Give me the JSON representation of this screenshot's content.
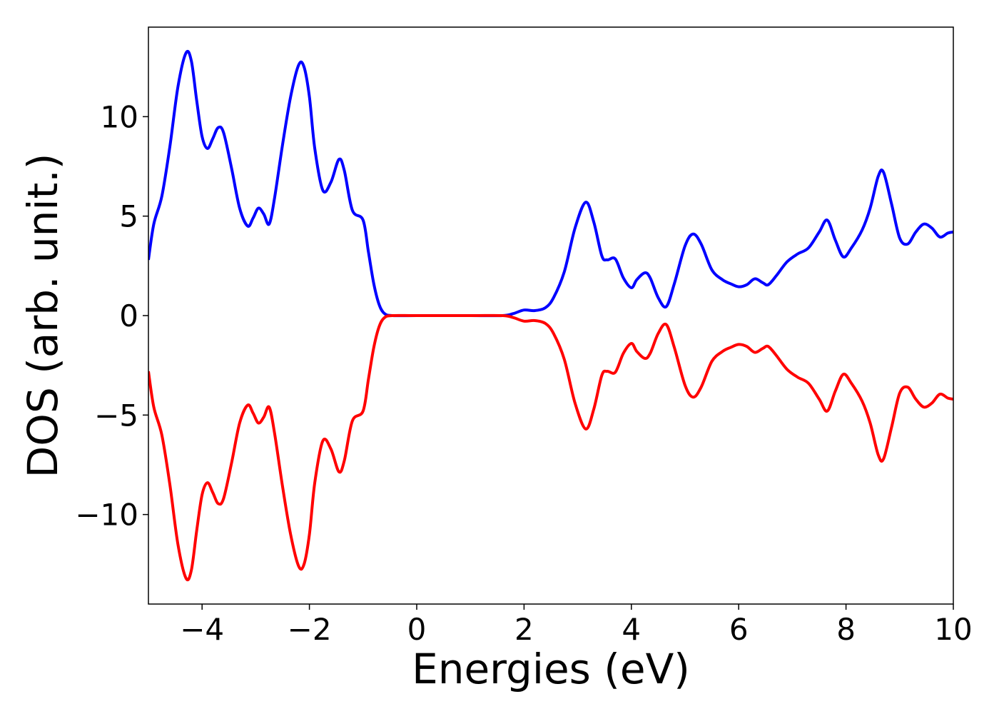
{
  "chart_data": {
    "type": "line",
    "title": "",
    "xlabel": "Energies (eV)",
    "ylabel": "DOS (arb. unit.)",
    "xlim": [
      -5,
      10
    ],
    "ylim": [
      -14.5,
      14.5
    ],
    "grid": false,
    "x_ticks": [
      {
        "value": -4,
        "label": "−4"
      },
      {
        "value": -2,
        "label": "−2"
      },
      {
        "value": 0,
        "label": "0"
      },
      {
        "value": 2,
        "label": "2"
      },
      {
        "value": 4,
        "label": "4"
      },
      {
        "value": 6,
        "label": "6"
      },
      {
        "value": 8,
        "label": "8"
      },
      {
        "value": 10,
        "label": "10"
      }
    ],
    "y_ticks": [
      {
        "value": 10,
        "label": "10"
      },
      {
        "value": 5,
        "label": "5"
      },
      {
        "value": 0,
        "label": "0"
      },
      {
        "value": -5,
        "label": "−5"
      },
      {
        "value": -10,
        "label": "−10"
      }
    ],
    "series": [
      {
        "color": "#0000ff",
        "points": [
          [
            -5.0,
            2.8
          ],
          [
            -4.9,
            4.6
          ],
          [
            -4.75,
            6.0
          ],
          [
            -4.6,
            8.5
          ],
          [
            -4.45,
            11.5
          ],
          [
            -4.3,
            13.2
          ],
          [
            -4.2,
            12.8
          ],
          [
            -4.1,
            10.8
          ],
          [
            -4.0,
            9.0
          ],
          [
            -3.9,
            8.4
          ],
          [
            -3.8,
            8.9
          ],
          [
            -3.7,
            9.45
          ],
          [
            -3.6,
            9.2
          ],
          [
            -3.45,
            7.4
          ],
          [
            -3.3,
            5.4
          ],
          [
            -3.15,
            4.5
          ],
          [
            -3.05,
            4.9
          ],
          [
            -2.95,
            5.4
          ],
          [
            -2.85,
            5.1
          ],
          [
            -2.75,
            4.6
          ],
          [
            -2.65,
            5.9
          ],
          [
            -2.5,
            8.6
          ],
          [
            -2.35,
            11.0
          ],
          [
            -2.2,
            12.6
          ],
          [
            -2.1,
            12.5
          ],
          [
            -2.0,
            11.0
          ],
          [
            -1.9,
            8.4
          ],
          [
            -1.75,
            6.3
          ],
          [
            -1.6,
            6.7
          ],
          [
            -1.45,
            7.85
          ],
          [
            -1.35,
            7.3
          ],
          [
            -1.2,
            5.3
          ],
          [
            -1.0,
            4.8
          ],
          [
            -0.9,
            3.2
          ],
          [
            -0.8,
            1.6
          ],
          [
            -0.7,
            0.55
          ],
          [
            -0.6,
            0.1
          ],
          [
            -0.45,
            0.0
          ],
          [
            0.0,
            0.0
          ],
          [
            1.0,
            0.0
          ],
          [
            1.6,
            0.0
          ],
          [
            1.8,
            0.1
          ],
          [
            2.0,
            0.28
          ],
          [
            2.2,
            0.25
          ],
          [
            2.4,
            0.4
          ],
          [
            2.55,
            0.9
          ],
          [
            2.75,
            2.2
          ],
          [
            2.95,
            4.4
          ],
          [
            3.15,
            5.7
          ],
          [
            3.3,
            4.7
          ],
          [
            3.45,
            3.0
          ],
          [
            3.55,
            2.8
          ],
          [
            3.7,
            2.85
          ],
          [
            3.85,
            1.9
          ],
          [
            4.0,
            1.4
          ],
          [
            4.1,
            1.8
          ],
          [
            4.25,
            2.15
          ],
          [
            4.35,
            1.9
          ],
          [
            4.5,
            0.9
          ],
          [
            4.65,
            0.45
          ],
          [
            4.8,
            1.6
          ],
          [
            5.0,
            3.5
          ],
          [
            5.15,
            4.1
          ],
          [
            5.3,
            3.6
          ],
          [
            5.5,
            2.3
          ],
          [
            5.7,
            1.8
          ],
          [
            5.85,
            1.6
          ],
          [
            6.0,
            1.45
          ],
          [
            6.15,
            1.55
          ],
          [
            6.3,
            1.85
          ],
          [
            6.45,
            1.65
          ],
          [
            6.55,
            1.55
          ],
          [
            6.7,
            2.0
          ],
          [
            6.9,
            2.7
          ],
          [
            7.1,
            3.1
          ],
          [
            7.3,
            3.4
          ],
          [
            7.5,
            4.2
          ],
          [
            7.65,
            4.8
          ],
          [
            7.8,
            3.8
          ],
          [
            7.95,
            2.95
          ],
          [
            8.1,
            3.4
          ],
          [
            8.3,
            4.3
          ],
          [
            8.45,
            5.4
          ],
          [
            8.6,
            7.0
          ],
          [
            8.7,
            7.2
          ],
          [
            8.85,
            5.6
          ],
          [
            9.0,
            3.9
          ],
          [
            9.15,
            3.6
          ],
          [
            9.3,
            4.2
          ],
          [
            9.45,
            4.6
          ],
          [
            9.6,
            4.4
          ],
          [
            9.75,
            3.95
          ],
          [
            9.9,
            4.15
          ],
          [
            10.0,
            4.2
          ]
        ]
      },
      {
        "color": "#ff0000",
        "points": [
          [
            -5.0,
            -2.8
          ],
          [
            -4.9,
            -4.6
          ],
          [
            -4.75,
            -6.0
          ],
          [
            -4.6,
            -8.5
          ],
          [
            -4.45,
            -11.5
          ],
          [
            -4.3,
            -13.2
          ],
          [
            -4.2,
            -12.8
          ],
          [
            -4.1,
            -10.8
          ],
          [
            -4.0,
            -9.0
          ],
          [
            -3.9,
            -8.4
          ],
          [
            -3.8,
            -8.9
          ],
          [
            -3.7,
            -9.45
          ],
          [
            -3.6,
            -9.2
          ],
          [
            -3.45,
            -7.4
          ],
          [
            -3.3,
            -5.4
          ],
          [
            -3.15,
            -4.5
          ],
          [
            -3.05,
            -4.9
          ],
          [
            -2.95,
            -5.4
          ],
          [
            -2.85,
            -5.1
          ],
          [
            -2.75,
            -4.6
          ],
          [
            -2.65,
            -5.9
          ],
          [
            -2.5,
            -8.6
          ],
          [
            -2.35,
            -11.0
          ],
          [
            -2.2,
            -12.6
          ],
          [
            -2.1,
            -12.5
          ],
          [
            -2.0,
            -11.0
          ],
          [
            -1.9,
            -8.4
          ],
          [
            -1.75,
            -6.3
          ],
          [
            -1.6,
            -6.7
          ],
          [
            -1.45,
            -7.85
          ],
          [
            -1.35,
            -7.3
          ],
          [
            -1.2,
            -5.3
          ],
          [
            -1.0,
            -4.8
          ],
          [
            -0.9,
            -3.2
          ],
          [
            -0.8,
            -1.6
          ],
          [
            -0.7,
            -0.55
          ],
          [
            -0.6,
            -0.1
          ],
          [
            -0.45,
            0.0
          ],
          [
            0.0,
            0.0
          ],
          [
            1.0,
            0.0
          ],
          [
            1.6,
            0.0
          ],
          [
            1.8,
            -0.1
          ],
          [
            2.0,
            -0.28
          ],
          [
            2.2,
            -0.25
          ],
          [
            2.4,
            -0.4
          ],
          [
            2.55,
            -0.9
          ],
          [
            2.75,
            -2.2
          ],
          [
            2.95,
            -4.4
          ],
          [
            3.15,
            -5.7
          ],
          [
            3.3,
            -4.7
          ],
          [
            3.45,
            -3.0
          ],
          [
            3.55,
            -2.8
          ],
          [
            3.7,
            -2.85
          ],
          [
            3.85,
            -1.9
          ],
          [
            4.0,
            -1.4
          ],
          [
            4.1,
            -1.8
          ],
          [
            4.25,
            -2.15
          ],
          [
            4.35,
            -1.9
          ],
          [
            4.5,
            -0.9
          ],
          [
            4.65,
            -0.45
          ],
          [
            4.8,
            -1.6
          ],
          [
            5.0,
            -3.5
          ],
          [
            5.15,
            -4.1
          ],
          [
            5.3,
            -3.6
          ],
          [
            5.5,
            -2.3
          ],
          [
            5.7,
            -1.8
          ],
          [
            5.85,
            -1.6
          ],
          [
            6.0,
            -1.45
          ],
          [
            6.15,
            -1.55
          ],
          [
            6.3,
            -1.85
          ],
          [
            6.45,
            -1.65
          ],
          [
            6.55,
            -1.55
          ],
          [
            6.7,
            -2.0
          ],
          [
            6.9,
            -2.7
          ],
          [
            7.1,
            -3.1
          ],
          [
            7.3,
            -3.4
          ],
          [
            7.5,
            -4.2
          ],
          [
            7.65,
            -4.8
          ],
          [
            7.8,
            -3.8
          ],
          [
            7.95,
            -2.95
          ],
          [
            8.1,
            -3.4
          ],
          [
            8.3,
            -4.3
          ],
          [
            8.45,
            -5.4
          ],
          [
            8.6,
            -7.0
          ],
          [
            8.7,
            -7.2
          ],
          [
            8.85,
            -5.6
          ],
          [
            9.0,
            -3.9
          ],
          [
            9.15,
            -3.6
          ],
          [
            9.3,
            -4.2
          ],
          [
            9.45,
            -4.6
          ],
          [
            9.6,
            -4.4
          ],
          [
            9.75,
            -3.95
          ],
          [
            9.9,
            -4.15
          ],
          [
            10.0,
            -4.2
          ]
        ]
      }
    ]
  }
}
